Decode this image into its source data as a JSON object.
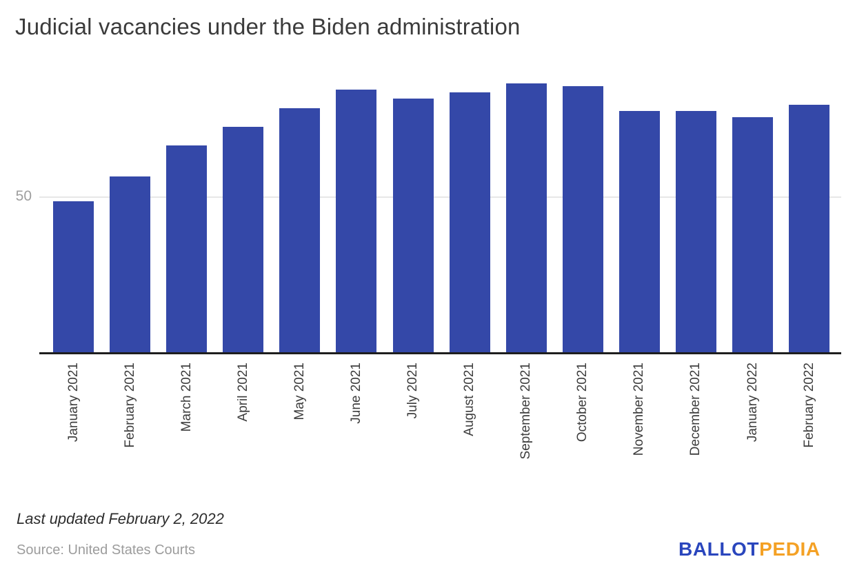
{
  "title": "Judicial vacancies under the Biden administration",
  "y_axis": {
    "tick_label": "50"
  },
  "footer": {
    "last_updated": "Last updated February 2, 2022",
    "source": "Source: United States Courts"
  },
  "logo": {
    "part1": "BALLOT",
    "part2": "PEDIA",
    "blue": "#2a46bd",
    "orange": "#f4a125"
  },
  "colors": {
    "bar": "#3448a8",
    "gridline": "#e7e7e7",
    "axis_line": "#1e1e1e",
    "title_text": "#3b3b3b",
    "tick_text": "#9e9e9e"
  },
  "chart_data": {
    "type": "bar",
    "title": "Judicial vacancies under the Biden administration",
    "categories": [
      "January 2021",
      "February 2021",
      "March 2021",
      "April 2021",
      "May 2021",
      "June 2021",
      "July 2021",
      "August 2021",
      "September 2021",
      "October 2021",
      "November 2021",
      "December 2021",
      "January 2022",
      "February 2022"
    ],
    "values": [
      49,
      57,
      67,
      73,
      79,
      85,
      82,
      84,
      87,
      86,
      78,
      78,
      76,
      80
    ],
    "xlabel": "",
    "ylabel": "",
    "ylim": [
      0,
      94
    ],
    "yticks": [
      50
    ],
    "grid": "single horizontal gridline at y=50",
    "legend": "none",
    "bar_color": "#3448a8"
  }
}
